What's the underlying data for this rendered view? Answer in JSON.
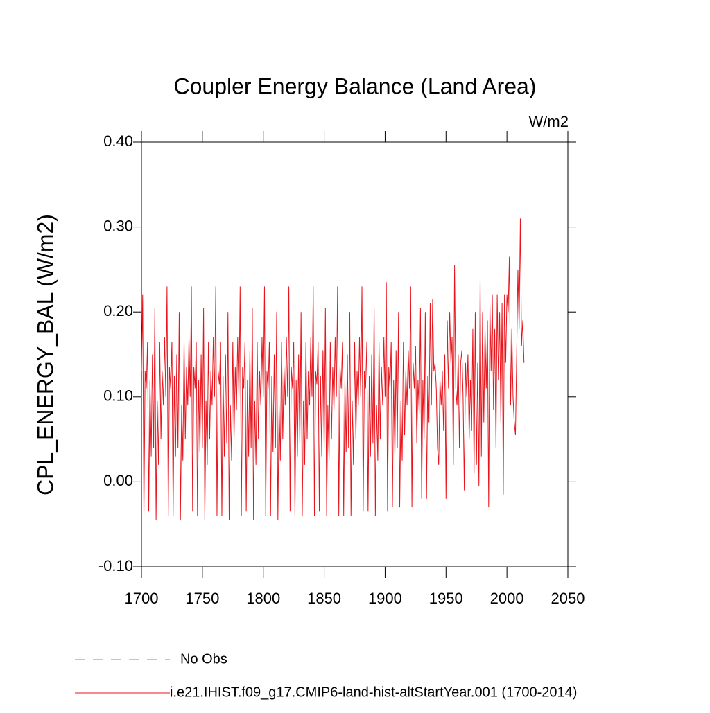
{
  "chart_data": {
    "type": "line",
    "title": "Coupler Energy Balance (Land Area)",
    "units": "W/m2",
    "y_label": "CPL_ENERGY_BAL  (W/m2)",
    "xlim": [
      1700,
      2050
    ],
    "xticks": [
      1700,
      1750,
      1800,
      1850,
      1900,
      1950,
      2000,
      2050
    ],
    "ylim": [
      -0.1,
      0.4
    ],
    "yticks": [
      {
        "value": -0.1,
        "label": "-0.10"
      },
      {
        "value": 0,
        "label": "0.00"
      },
      {
        "value": 0.1,
        "label": "0.10"
      },
      {
        "value": 0.2,
        "label": "0.20"
      },
      {
        "value": 0.3,
        "label": "0.30"
      },
      {
        "value": 0.4,
        "label": "0.40"
      }
    ],
    "legend_items": [
      {
        "name": "No Obs",
        "color": "#8a7fc9",
        "dashed": true
      }
    ],
    "x": [
      1700,
      1701,
      1702,
      1703,
      1704,
      1705,
      1706,
      1707,
      1708,
      1709,
      1710,
      1711,
      1712,
      1713,
      1714,
      1715,
      1716,
      1717,
      1718,
      1719,
      1720,
      1721,
      1722,
      1723,
      1724,
      1725,
      1726,
      1727,
      1728,
      1729,
      1730,
      1731,
      1732,
      1733,
      1734,
      1735,
      1736,
      1737,
      1738,
      1739,
      1740,
      1741,
      1742,
      1743,
      1744,
      1745,
      1746,
      1747,
      1748,
      1749,
      1750,
      1751,
      1752,
      1753,
      1754,
      1755,
      1756,
      1757,
      1758,
      1759,
      1760,
      1761,
      1762,
      1763,
      1764,
      1765,
      1766,
      1767,
      1768,
      1769,
      1770,
      1771,
      1772,
      1773,
      1774,
      1775,
      1776,
      1777,
      1778,
      1779,
      1780,
      1781,
      1782,
      1783,
      1784,
      1785,
      1786,
      1787,
      1788,
      1789,
      1790,
      1791,
      1792,
      1793,
      1794,
      1795,
      1796,
      1797,
      1798,
      1799,
      1800,
      1801,
      1802,
      1803,
      1804,
      1805,
      1806,
      1807,
      1808,
      1809,
      1810,
      1811,
      1812,
      1813,
      1814,
      1815,
      1816,
      1817,
      1818,
      1819,
      1820,
      1821,
      1822,
      1823,
      1824,
      1825,
      1826,
      1827,
      1828,
      1829,
      1830,
      1831,
      1832,
      1833,
      1834,
      1835,
      1836,
      1837,
      1838,
      1839,
      1840,
      1841,
      1842,
      1843,
      1844,
      1845,
      1846,
      1847,
      1848,
      1849,
      1850,
      1851,
      1852,
      1853,
      1854,
      1855,
      1856,
      1857,
      1858,
      1859,
      1860,
      1861,
      1862,
      1863,
      1864,
      1865,
      1866,
      1867,
      1868,
      1869,
      1870,
      1871,
      1872,
      1873,
      1874,
      1875,
      1876,
      1877,
      1878,
      1879,
      1880,
      1881,
      1882,
      1883,
      1884,
      1885,
      1886,
      1887,
      1888,
      1889,
      1890,
      1891,
      1892,
      1893,
      1894,
      1895,
      1896,
      1897,
      1898,
      1899,
      1900,
      1901,
      1902,
      1903,
      1904,
      1905,
      1906,
      1907,
      1908,
      1909,
      1910,
      1911,
      1912,
      1913,
      1914,
      1915,
      1916,
      1917,
      1918,
      1919,
      1920,
      1921,
      1922,
      1923,
      1924,
      1925,
      1926,
      1927,
      1928,
      1929,
      1930,
      1931,
      1932,
      1933,
      1934,
      1935,
      1936,
      1937,
      1938,
      1939,
      1940,
      1941,
      1942,
      1943,
      1944,
      1945,
      1946,
      1947,
      1948,
      1949,
      1950,
      1951,
      1952,
      1953,
      1954,
      1955,
      1956,
      1957,
      1958,
      1959,
      1960,
      1961,
      1962,
      1963,
      1964,
      1965,
      1966,
      1967,
      1968,
      1969,
      1970,
      1971,
      1972,
      1973,
      1974,
      1975,
      1976,
      1977,
      1978,
      1979,
      1980,
      1981,
      1982,
      1983,
      1984,
      1985,
      1986,
      1987,
      1988,
      1989,
      1990,
      1991,
      1992,
      1993,
      1994,
      1995,
      1996,
      1997,
      1998,
      1999,
      2000,
      2001,
      2002,
      2003,
      2004,
      2005,
      2006,
      2007,
      2008,
      2009,
      2010,
      2011,
      2012,
      2013,
      2014
    ],
    "series": [
      {
        "name": "i.e21.IHIST.f09_g17.CMIP6-land-hist-altStartYear.001 (1700-2014)",
        "color": "#e8141c",
        "values": [
          0.13,
          0.22,
          -0.04,
          0.13,
          0.11,
          0.165,
          -0.035,
          0.12,
          0.03,
          0.15,
          0.04,
          0.205,
          -0.045,
          0.095,
          0.02,
          0.165,
          0.05,
          0.13,
          0.09,
          0.17,
          0.1,
          0.23,
          -0.04,
          0.135,
          0.11,
          0.165,
          -0.04,
          0.125,
          0.03,
          0.15,
          0.04,
          0.2,
          -0.045,
          0.09,
          0.025,
          0.165,
          0.05,
          0.135,
          0.09,
          0.17,
          0.1,
          0.23,
          -0.035,
          0.135,
          0.11,
          0.165,
          -0.04,
          0.12,
          0.035,
          0.15,
          0.04,
          0.205,
          -0.045,
          0.095,
          0.02,
          0.165,
          0.05,
          0.13,
          0.09,
          0.17,
          0.1,
          0.23,
          -0.04,
          0.13,
          0.115,
          0.165,
          -0.04,
          0.125,
          0.03,
          0.15,
          0.045,
          0.2,
          -0.045,
          0.09,
          0.025,
          0.165,
          0.05,
          0.135,
          0.085,
          0.17,
          0.1,
          0.23,
          -0.04,
          0.135,
          0.11,
          0.165,
          -0.035,
          0.12,
          0.03,
          0.155,
          0.04,
          0.205,
          -0.045,
          0.095,
          0.02,
          0.165,
          0.05,
          0.13,
          0.09,
          0.17,
          0.1,
          0.23,
          -0.04,
          0.13,
          0.11,
          0.165,
          -0.04,
          0.125,
          0.035,
          0.15,
          0.04,
          0.2,
          -0.045,
          0.09,
          0.025,
          0.165,
          0.05,
          0.135,
          0.09,
          0.17,
          0.1,
          0.23,
          -0.035,
          0.135,
          0.11,
          0.165,
          -0.04,
          0.12,
          0.03,
          0.15,
          0.045,
          0.2,
          -0.04,
          0.095,
          0.02,
          0.165,
          0.05,
          0.13,
          0.09,
          0.17,
          0.1,
          0.23,
          -0.04,
          0.13,
          0.115,
          0.165,
          -0.035,
          0.125,
          0.03,
          0.155,
          0.04,
          0.205,
          -0.04,
          0.09,
          0.025,
          0.165,
          0.05,
          0.135,
          0.085,
          0.17,
          0.1,
          0.23,
          -0.04,
          0.135,
          0.11,
          0.165,
          -0.04,
          0.12,
          0.035,
          0.15,
          0.04,
          0.2,
          -0.04,
          0.095,
          0.02,
          0.165,
          0.05,
          0.13,
          0.09,
          0.17,
          0.1,
          0.23,
          -0.035,
          0.13,
          0.11,
          0.165,
          -0.035,
          0.125,
          0.03,
          0.15,
          0.045,
          0.205,
          -0.04,
          0.09,
          0.025,
          0.165,
          0.05,
          0.135,
          0.09,
          0.17,
          0.1,
          0.235,
          -0.035,
          0.135,
          0.11,
          0.165,
          -0.03,
          0.12,
          0.03,
          0.155,
          0.04,
          0.2,
          -0.03,
          0.095,
          0.025,
          0.165,
          0.055,
          0.13,
          0.09,
          0.155,
          0.11,
          0.23,
          -0.03,
          0.14,
          0.11,
          0.16,
          0.045,
          0.12,
          0.08,
          0.205,
          -0.02,
          0.12,
          0.05,
          0.2,
          -0.02,
          0.125,
          0.07,
          0.21,
          0.09,
          0.215,
          0.13,
          0.14,
          0.11,
          0.04,
          0.02,
          0.12,
          0.09,
          0.13,
          0.06,
          0.15,
          -0.02,
          0.19,
          0.11,
          0.2,
          0.14,
          0.17,
          0.02,
          0.255,
          0.11,
          0.09,
          0.15,
          0.04,
          0.14,
          0.155,
          0.1,
          -0.01,
          0.14,
          0.1,
          0.15,
          0.05,
          0.12,
          0.06,
          0.18,
          0.01,
          0.2,
          0.02,
          0.14,
          -0.005,
          0.24,
          0.03,
          0.2,
          0.07,
          0.18,
          0.11,
          0.19,
          -0.03,
          0.21,
          0.13,
          0.22,
          0.085,
          0.18,
          0.04,
          0.22,
          0.12,
          0.2,
          0.07,
          0.21,
          -0.015,
          0.22,
          0.14,
          0.22,
          0.2,
          0.265,
          0.09,
          0.18,
          0.1,
          0.07,
          0.055,
          0.15,
          0.25,
          0.18,
          0.31,
          0.16,
          0.19,
          0.14
        ]
      }
    ]
  }
}
